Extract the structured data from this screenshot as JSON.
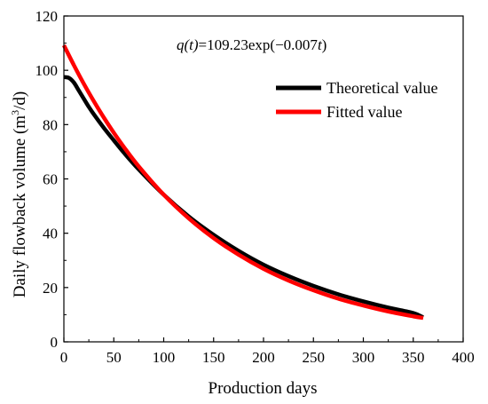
{
  "chart_data": {
    "type": "line",
    "xlabel": "Production days",
    "ylabel_main": "Daily flowback volume (m",
    "ylabel_sup": "3",
    "ylabel_end": "/d)",
    "xlim": [
      0,
      400
    ],
    "ylim": [
      0,
      120
    ],
    "x_ticks": [
      "0",
      "50",
      "100",
      "150",
      "200",
      "250",
      "300",
      "350",
      "400"
    ],
    "y_ticks": [
      "0",
      "20",
      "40",
      "60",
      "80",
      "100",
      "120"
    ],
    "grid": false,
    "legend_position": "top-right",
    "annotation": {
      "q_of_t": "q(t)",
      "formula_main": "=109.23exp(−0.007",
      "t": "t",
      "close": ")"
    },
    "series": [
      {
        "name": "Theoretical value",
        "color": "#000000",
        "x": [
          0,
          5,
          10,
          15,
          20,
          25,
          30,
          40,
          50,
          60,
          75,
          100,
          125,
          150,
          175,
          200,
          225,
          250,
          275,
          300,
          325,
          350,
          360
        ],
        "y": [
          97.5,
          97.2,
          95.5,
          92.5,
          89.5,
          86.5,
          83.8,
          78.8,
          74.2,
          69.7,
          63.5,
          54.2,
          46.2,
          39.4,
          33.5,
          28.4,
          24.2,
          20.6,
          17.5,
          14.9,
          12.6,
          10.6,
          9.0
        ]
      },
      {
        "name": "Fitted value",
        "color": "#ff0000",
        "x": [
          0,
          10,
          20,
          30,
          40,
          50,
          60,
          75,
          100,
          125,
          150,
          175,
          200,
          225,
          250,
          275,
          300,
          325,
          350,
          360
        ],
        "y": [
          109.2,
          101.9,
          95.0,
          88.6,
          82.6,
          77.0,
          71.8,
          64.6,
          54.2,
          45.5,
          38.2,
          32.1,
          26.9,
          22.6,
          19.0,
          15.9,
          13.4,
          11.2,
          9.4,
          8.8
        ]
      }
    ]
  }
}
